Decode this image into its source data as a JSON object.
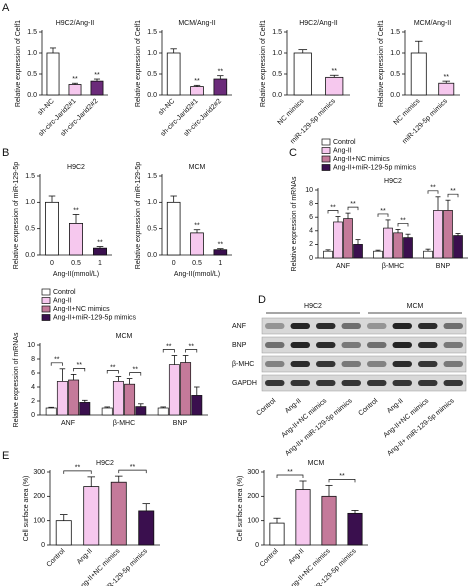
{
  "panel_labels": [
    "A",
    "B",
    "C",
    "D",
    "E"
  ],
  "chart_data": [
    {
      "type": "bar",
      "title": "H9C2/Ang-II",
      "y_label": "Relative expression of Celf1",
      "categories": [
        "sh-NC",
        "sh-circ-Jarid2#1",
        "sh-circ-Jarid2#2"
      ],
      "values": [
        1.0,
        0.25,
        0.33
      ],
      "errors": [
        0.12,
        0.03,
        0.05
      ],
      "colors": [
        "#ffffff",
        "#f6c8ee",
        "#6b2b7a"
      ],
      "sig": [
        null,
        "**",
        "**"
      ],
      "xtick_rotation": 45,
      "ylim": [
        0,
        1.5
      ],
      "yticks": [
        {
          "value": 0,
          "label": "0.0"
        },
        0.5,
        {
          "value": 1,
          "label": "1.0"
        },
        1.5
      ]
    },
    {
      "type": "bar",
      "title": "MCM/Ang-II",
      "y_label": "Relative expression of Celf1",
      "categories": [
        "sh-NC",
        "sh-circ-Jarid2#1",
        "sh-circ-Jarid2#2"
      ],
      "values": [
        1.0,
        0.2,
        0.38
      ],
      "errors": [
        0.1,
        0.03,
        0.08
      ],
      "colors": [
        "#ffffff",
        "#f6c8ee",
        "#6b2b7a"
      ],
      "sig": [
        null,
        "**",
        "**"
      ],
      "xtick_rotation": 45,
      "ylim": [
        0,
        1.5
      ],
      "yticks": [
        {
          "value": 0,
          "label": "0.0"
        },
        0.5,
        {
          "value": 1,
          "label": "1.0"
        },
        1.5
      ]
    },
    {
      "type": "bar",
      "title": "H9C2/Ang-II",
      "y_label": "Relative expression of Celf1",
      "categories": [
        "NC mimics",
        "miR-129-5p mimics"
      ],
      "values": [
        1.0,
        0.42
      ],
      "errors": [
        0.08,
        0.05
      ],
      "colors": [
        "#ffffff",
        "#f6c8ee"
      ],
      "sig": [
        null,
        "**"
      ],
      "xtick_rotation": 45,
      "ylim": [
        0,
        1.5
      ],
      "yticks": [
        {
          "value": 0,
          "label": "0.0"
        },
        0.5,
        {
          "value": 1,
          "label": "1.0"
        },
        1.5
      ]
    },
    {
      "type": "bar",
      "title": "MCM/Ang-II",
      "y_label": "Relative expression of Celf1",
      "categories": [
        "NC mimics",
        "miR-129-5p mimics"
      ],
      "values": [
        1.0,
        0.28
      ],
      "errors": [
        0.28,
        0.05
      ],
      "colors": [
        "#ffffff",
        "#f6c8ee"
      ],
      "sig": [
        null,
        "**"
      ],
      "xtick_rotation": 45,
      "ylim": [
        0,
        1.5
      ],
      "yticks": [
        {
          "value": 0,
          "label": "0.0"
        },
        0.5,
        {
          "value": 1,
          "label": "1.0"
        },
        1.5
      ]
    },
    {
      "type": "bar",
      "title": "H9C2",
      "y_label": "Relative expression of miR-129-5p",
      "x_label": "Ang-II(mmol/L)",
      "categories": [
        "0",
        "0.5",
        "1"
      ],
      "values": [
        1.0,
        0.6,
        0.13
      ],
      "errors": [
        0.12,
        0.17,
        0.03
      ],
      "colors": [
        "#ffffff",
        "#f6c8ee",
        "#3a0f4e"
      ],
      "sig": [
        null,
        "**",
        "**"
      ],
      "ylim": [
        0,
        1.5
      ],
      "yticks": [
        {
          "value": 0,
          "label": "0.0"
        },
        0.5,
        {
          "value": 1,
          "label": "1.0"
        },
        1.5
      ]
    },
    {
      "type": "bar",
      "title": "MCM",
      "y_label": "Relative expression of miR-129-5p",
      "x_label": "Ang-II(mmol/L)",
      "categories": [
        "0",
        "0.5",
        "1"
      ],
      "values": [
        1.0,
        0.42,
        0.1
      ],
      "errors": [
        0.12,
        0.06,
        0.02
      ],
      "colors": [
        "#ffffff",
        "#f6c8ee",
        "#3a0f4e"
      ],
      "sig": [
        null,
        "**",
        "**"
      ],
      "ylim": [
        0,
        1.5
      ],
      "yticks": [
        {
          "value": 0,
          "label": "0.0"
        },
        0.5,
        {
          "value": 1,
          "label": "1.0"
        },
        1.5
      ]
    },
    {
      "type": "grouped_bar",
      "title": "H9C2",
      "y_label": "Relative expression of mRNAs",
      "legend": true,
      "brackets": true,
      "categories": [
        "ANF",
        "β-MHC",
        "BNP"
      ],
      "series": [
        {
          "name": "Control",
          "color": "#ffffff",
          "values": [
            1,
            1,
            1
          ],
          "errors": [
            0.2,
            0.15,
            0.3
          ],
          "sig": [
            null,
            null,
            null
          ]
        },
        {
          "name": "Ang-II",
          "color": "#f6c8ee",
          "values": [
            5.3,
            4.4,
            7.0
          ],
          "errors": [
            0.8,
            1.2,
            2.0
          ],
          "sig": [
            "**",
            "**",
            "**"
          ]
        },
        {
          "name": "Ang-II+NC mimics",
          "color": "#c47a9a",
          "values": [
            5.8,
            3.7,
            7.0
          ],
          "errors": [
            0.8,
            0.5,
            1.5
          ],
          "sig": [
            null,
            null,
            null
          ]
        },
        {
          "name": "Ang-II+miR-129-5p mimics",
          "color": "#3a0f4e",
          "values": [
            2.0,
            3.0,
            3.3
          ],
          "errors": [
            0.7,
            0.5,
            0.3
          ],
          "sig": [
            "**",
            "**",
            "**"
          ]
        }
      ],
      "ylim": [
        0,
        10
      ],
      "yticks": [
        0,
        2,
        4,
        6,
        8,
        10
      ]
    },
    {
      "type": "grouped_bar",
      "title": "MCM",
      "y_label": "Relative expression of mRNAs",
      "legend": true,
      "brackets": true,
      "categories": [
        "ANF",
        "β-MHC",
        "BNP"
      ],
      "series": [
        {
          "name": "Control",
          "color": "#ffffff",
          "values": [
            1,
            1,
            1
          ],
          "errors": [
            0.1,
            0.15,
            0.15
          ],
          "sig": [
            null,
            null,
            null
          ]
        },
        {
          "name": "Ang-II",
          "color": "#f6c8ee",
          "values": [
            4.8,
            4.8,
            7.2
          ],
          "errors": [
            1.8,
            0.7,
            1.3
          ],
          "sig": [
            "**",
            "**",
            "**"
          ]
        },
        {
          "name": "Ang-II+NC mimics",
          "color": "#c47a9a",
          "values": [
            5.0,
            4.4,
            7.5
          ],
          "errors": [
            0.8,
            0.8,
            1.0
          ],
          "sig": [
            null,
            null,
            null
          ]
        },
        {
          "name": "Ang-II+miR-129-5p mimics",
          "color": "#3a0f4e",
          "values": [
            1.8,
            1.2,
            2.8
          ],
          "errors": [
            0.3,
            0.4,
            1.2
          ],
          "sig": [
            "**",
            "**",
            "**"
          ]
        }
      ],
      "ylim": [
        0,
        10
      ],
      "yticks": [
        0,
        2,
        4,
        6,
        8,
        10
      ]
    },
    {
      "type": "bar",
      "title": "H9C2",
      "y_label": "Cell surface area (%)",
      "brackets": true,
      "categories": [
        "Control",
        "Ang-II",
        "Ang-II+NC mimics",
        "Ang-II+ miR-129-5p mimics"
      ],
      "values": [
        100,
        240,
        258,
        140
      ],
      "errors": [
        25,
        40,
        25,
        30
      ],
      "colors": [
        "#ffffff",
        "#f6c8ee",
        "#c47a9a",
        "#3a0f4e"
      ],
      "sig": [
        null,
        "**",
        null,
        "**"
      ],
      "xtick_rotation": 45,
      "ylim": [
        0,
        300
      ],
      "yticks": [
        0,
        100,
        200,
        300
      ]
    },
    {
      "type": "bar",
      "title": "MCM",
      "y_label": "Cell surface area (%)",
      "brackets": true,
      "categories": [
        "Control",
        "Ang-II",
        "Ang-II+NC mimics",
        "Ang-II+ miR-129-5p mimics"
      ],
      "values": [
        90,
        228,
        200,
        130
      ],
      "errors": [
        20,
        35,
        45,
        12
      ],
      "colors": [
        "#ffffff",
        "#f6c8ee",
        "#c47a9a",
        "#3a0f4e"
      ],
      "sig": [
        null,
        "**",
        null,
        "**"
      ],
      "xtick_rotation": 45,
      "ylim": [
        0,
        300
      ],
      "yticks": [
        0,
        100,
        200,
        300
      ]
    }
  ],
  "blot": {
    "groups": [
      "H9C2",
      "MCM"
    ],
    "rows": [
      "ANF",
      "BNP",
      "β-MHC",
      "GAPDH"
    ],
    "lanes": [
      "Control",
      "Ang-II",
      "Ang-II+NC mimics",
      "Ang-II+ miR-129-5p mimics"
    ]
  }
}
